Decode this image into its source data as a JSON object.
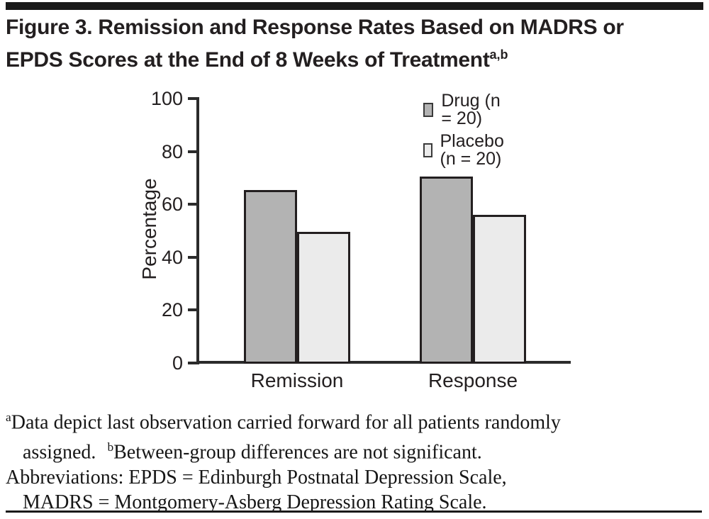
{
  "figure": {
    "title_line1": "Figure 3. Remission and Response Rates Based on MADRS or",
    "title_line2": "EPDS Scores at the End of 8 Weeks of Treatment",
    "title_superscript": "a,b"
  },
  "chart_data": {
    "type": "bar",
    "title": "Figure 3. Remission and Response Rates Based on MADRS or EPDS Scores at the End of 8 Weeks of Treatment",
    "categories": [
      "Remission",
      "Response"
    ],
    "series": [
      {
        "name": "Drug (n = 20)",
        "values": [
          65.5,
          70.5
        ],
        "color": "#b3b3b3"
      },
      {
        "name": "Placebo (n = 20)",
        "values": [
          49.5,
          56.0
        ],
        "color": "#ebebeb"
      }
    ],
    "xlabel": "",
    "ylabel": "Percentage",
    "ylim": [
      0,
      100
    ],
    "yticks": [
      0,
      20,
      40,
      60,
      80,
      100
    ],
    "grid": false,
    "legend_position": "top-right",
    "bar_outline_color": "#231f20"
  },
  "footnotes": {
    "line1_sup": "a",
    "line1_text": "Data depict last observation carried forward for all patients randomly",
    "line2_pre": "assigned.",
    "line2_sup": "b",
    "line2_post": "Between-group differences are not significant.",
    "line3": "Abbreviations: EPDS = Edinburgh Postnatal Depression Scale,",
    "line4": "MADRS = Montgomery-Asberg Depression Rating Scale."
  },
  "colors": {
    "rule": "#1a1a1a",
    "axis": "#2b2b2b",
    "text": "#231f20"
  }
}
